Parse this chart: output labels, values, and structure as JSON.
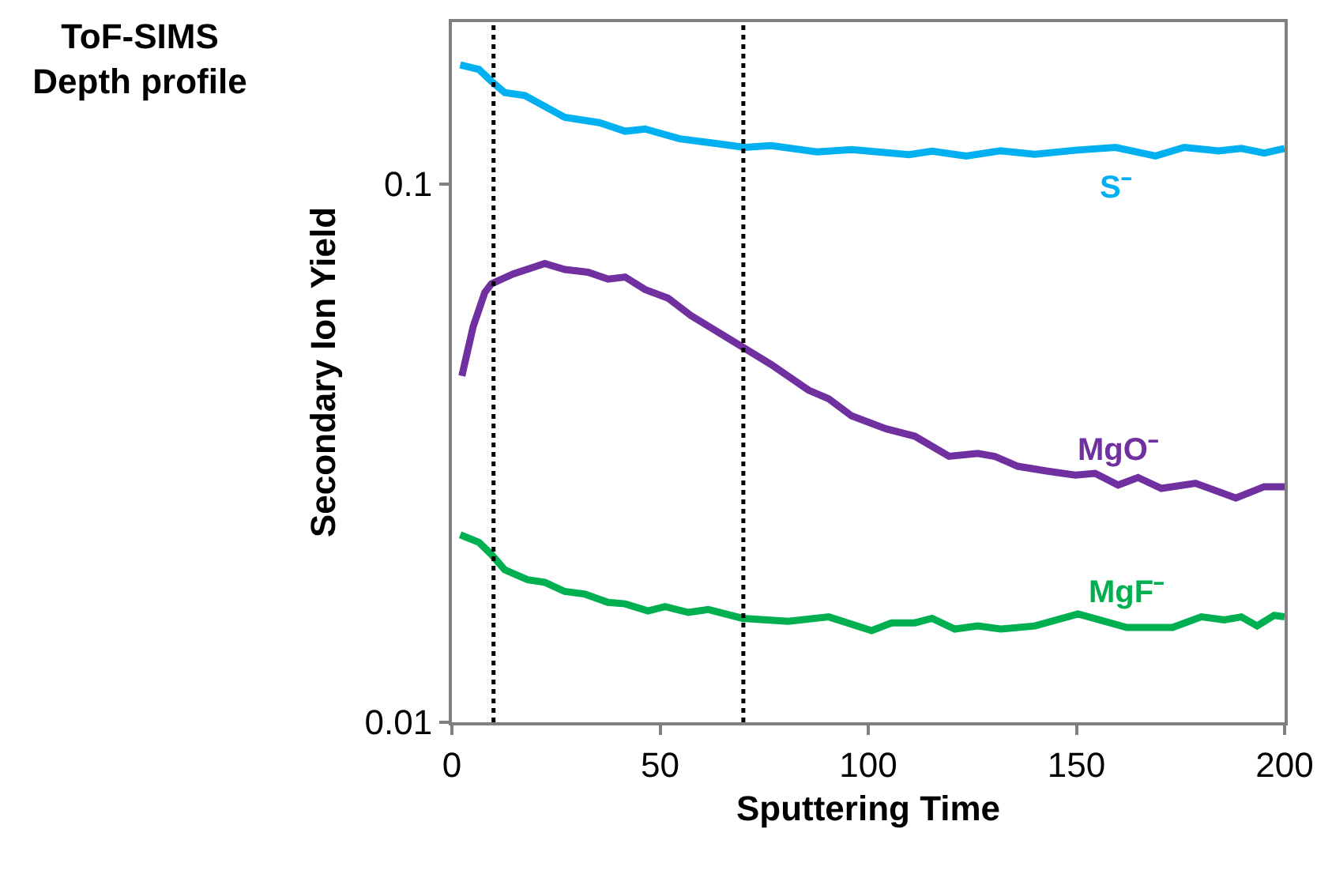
{
  "chart_data": {
    "type": "line",
    "title": "ToF-SIMS\nDepth profile",
    "xlabel": "Sputtering Time",
    "ylabel": "Secondary Ion Yield",
    "xlim": [
      0,
      200
    ],
    "xticks": [
      0,
      50,
      100,
      150,
      200
    ],
    "ylim": [
      0.01,
      0.2
    ],
    "yticks": [
      0.01,
      0.1
    ],
    "log": "y",
    "legend": false,
    "marker": "none",
    "line_style": "solid",
    "series": [
      {
        "name": "S⁻",
        "color": "#00b0f0",
        "x": [
          2,
          6.5,
          9.5,
          12.7,
          17.5,
          27.1,
          35.4,
          41.6,
          46.4,
          54.7,
          63,
          70.3,
          76.7,
          87.7,
          96,
          109.8,
          115.3,
          123.5,
          131.8,
          140,
          149.7,
          159.4,
          169,
          175.9,
          184.1,
          189.6,
          195.1,
          200
        ],
        "values": [
          0.1665,
          0.1633,
          0.1553,
          0.1479,
          0.1461,
          0.1331,
          0.1301,
          0.1254,
          0.1266,
          0.1214,
          0.1191,
          0.117,
          0.1179,
          0.1148,
          0.1159,
          0.1134,
          0.1151,
          0.1128,
          0.1153,
          0.1136,
          0.1156,
          0.117,
          0.1128,
          0.117,
          0.1153,
          0.1165,
          0.1142,
          0.1165
        ]
      },
      {
        "name": "MgO⁻",
        "color": "#7030a0",
        "x": [
          2.4,
          5.1,
          7.9,
          9.5,
          14.7,
          22.3,
          27.1,
          32.7,
          37.5,
          41.6,
          46.4,
          51.9,
          57.4,
          69.8,
          76.7,
          85.7,
          90.5,
          96,
          104.3,
          111.2,
          119.4,
          126.3,
          130.4,
          135.9,
          142.8,
          149.7,
          154.5,
          160,
          164.8,
          170.4,
          178.6,
          188.3,
          195.1,
          200
        ],
        "values": [
          0.044,
          0.0543,
          0.0629,
          0.0653,
          0.0681,
          0.0712,
          0.0694,
          0.0686,
          0.0666,
          0.0672,
          0.0637,
          0.0614,
          0.057,
          0.0498,
          0.0462,
          0.0414,
          0.0399,
          0.0371,
          0.0351,
          0.034,
          0.0312,
          0.0316,
          0.0312,
          0.0299,
          0.0293,
          0.0288,
          0.029,
          0.0276,
          0.0285,
          0.0272,
          0.0278,
          0.0261,
          0.0274,
          0.0274
        ]
      },
      {
        "name": "MgF⁻",
        "color": "#00b050",
        "x": [
          2,
          6.5,
          9.5,
          12.7,
          18.2,
          22.3,
          27.1,
          32,
          37.5,
          41.6,
          47.1,
          51.2,
          56.8,
          61.6,
          69.8,
          80.8,
          90.5,
          100.8,
          105.6,
          111.2,
          115.3,
          120.8,
          126.3,
          131.8,
          140,
          150.4,
          162.1,
          173.1,
          180,
          185.5,
          189.6,
          193.4,
          197.5,
          200
        ],
        "values": [
          0.0223,
          0.0216,
          0.0205,
          0.0192,
          0.0184,
          0.0182,
          0.0175,
          0.0173,
          0.0167,
          0.0166,
          0.0161,
          0.0164,
          0.016,
          0.0162,
          0.0156,
          0.0154,
          0.0157,
          0.0148,
          0.0153,
          0.0153,
          0.0156,
          0.0149,
          0.0151,
          0.0149,
          0.0151,
          0.0159,
          0.015,
          0.015,
          0.0157,
          0.0155,
          0.0157,
          0.0151,
          0.0158,
          0.0157
        ]
      }
    ],
    "ref_lines": [
      {
        "axis": "x",
        "value": 10,
        "color": "#000000",
        "line_style": "dotted"
      },
      {
        "axis": "x",
        "value": 70,
        "color": "#000000",
        "line_style": "dotted"
      }
    ]
  }
}
